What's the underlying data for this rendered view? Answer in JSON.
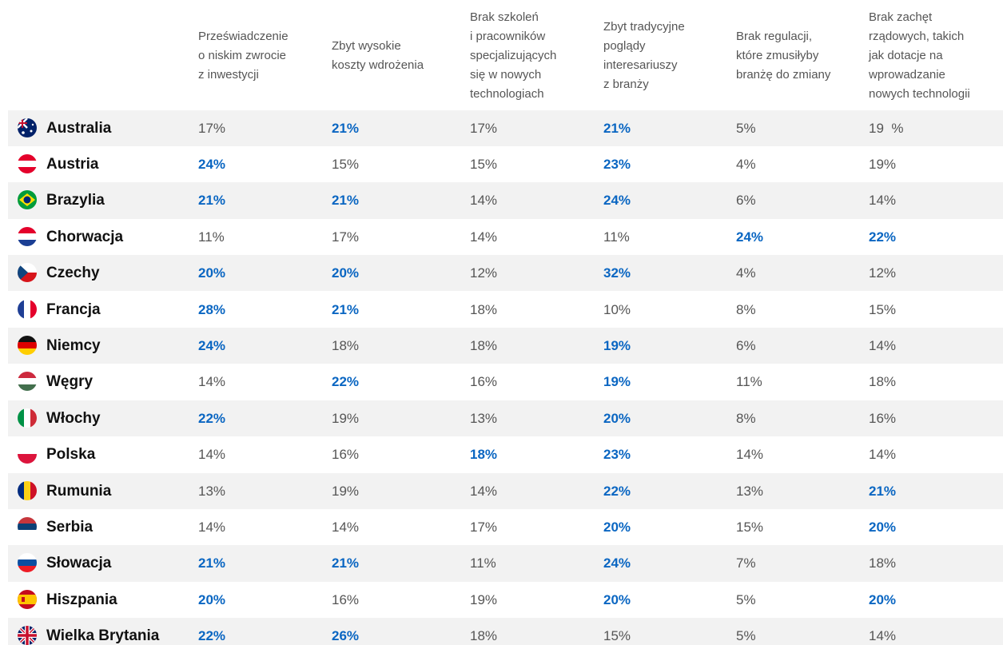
{
  "header": {
    "columns": [
      "Przeświadczenie\no niskim zwrocie\nz inwestycji",
      "Zbyt wysokie\nkoszty wdrożenia",
      "Brak szkoleń\ni pracowników\nspecjalizujących\nsię w nowych\ntechnologiach",
      "Zbyt tradycyjne\npoglądy\ninteresariuszy\nz branży",
      "Brak regulacji,\nktóre zmusiłyby\nbranżę do zmiany",
      "Brak zachęt\nrządowych, takich\njak dotacje na\nwprowadzanie\nnowych technologii"
    ]
  },
  "table": {
    "rows": [
      {
        "country": "Australia",
        "cells": [
          "17%",
          "21%",
          "17%",
          "21%",
          "5%",
          "19  %"
        ],
        "highlighted": [
          false,
          true,
          false,
          true,
          false,
          false
        ]
      },
      {
        "country": "Austria",
        "cells": [
          "24%",
          "15%",
          "15%",
          "23%",
          "4%",
          "19%"
        ],
        "highlighted": [
          true,
          false,
          false,
          true,
          false,
          false
        ]
      },
      {
        "country": "Brazylia",
        "cells": [
          "21%",
          "21%",
          "14%",
          "24%",
          "6%",
          "14%"
        ],
        "highlighted": [
          true,
          true,
          false,
          true,
          false,
          false
        ]
      },
      {
        "country": "Chorwacja",
        "cells": [
          "11%",
          "17%",
          "14%",
          "11%",
          "24%",
          "22%"
        ],
        "highlighted": [
          false,
          false,
          false,
          false,
          true,
          true
        ]
      },
      {
        "country": "Czechy",
        "cells": [
          "20%",
          "20%",
          "12%",
          "32%",
          "4%",
          "12%"
        ],
        "highlighted": [
          true,
          true,
          false,
          true,
          false,
          false
        ]
      },
      {
        "country": "Francja",
        "cells": [
          "28%",
          "21%",
          "18%",
          "10%",
          "8%",
          "15%"
        ],
        "highlighted": [
          true,
          true,
          false,
          false,
          false,
          false
        ]
      },
      {
        "country": "Niemcy",
        "cells": [
          "24%",
          "18%",
          "18%",
          "19%",
          "6%",
          "14%"
        ],
        "highlighted": [
          true,
          false,
          false,
          true,
          false,
          false
        ]
      },
      {
        "country": "Węgry",
        "cells": [
          "14%",
          "22%",
          "16%",
          "19%",
          "11%",
          "18%"
        ],
        "highlighted": [
          false,
          true,
          false,
          true,
          false,
          false
        ]
      },
      {
        "country": "Włochy",
        "cells": [
          "22%",
          "19%",
          "13%",
          "20%",
          "8%",
          "16%"
        ],
        "highlighted": [
          true,
          false,
          false,
          true,
          false,
          false
        ]
      },
      {
        "country": "Polska",
        "cells": [
          "14%",
          "16%",
          "18%",
          "23%",
          "14%",
          "14%"
        ],
        "highlighted": [
          false,
          false,
          true,
          true,
          false,
          false
        ]
      },
      {
        "country": "Rumunia",
        "cells": [
          "13%",
          "19%",
          "14%",
          "22%",
          "13%",
          "21%"
        ],
        "highlighted": [
          false,
          false,
          false,
          true,
          false,
          true
        ]
      },
      {
        "country": "Serbia",
        "cells": [
          "14%",
          "14%",
          "17%",
          "20%",
          "15%",
          "20%"
        ],
        "highlighted": [
          false,
          false,
          false,
          true,
          false,
          true
        ]
      },
      {
        "country": "Słowacja",
        "cells": [
          "21%",
          "21%",
          "11%",
          "24%",
          "7%",
          "18%"
        ],
        "highlighted": [
          true,
          true,
          false,
          true,
          false,
          false
        ]
      },
      {
        "country": "Hiszpania",
        "cells": [
          "20%",
          "16%",
          "19%",
          "20%",
          "5%",
          "20%"
        ],
        "highlighted": [
          true,
          false,
          false,
          true,
          false,
          true
        ]
      },
      {
        "country": "Wielka Brytania",
        "cells": [
          "22%",
          "26%",
          "18%",
          "15%",
          "5%",
          "14%"
        ],
        "highlighted": [
          true,
          true,
          false,
          false,
          false,
          false
        ]
      }
    ]
  }
}
